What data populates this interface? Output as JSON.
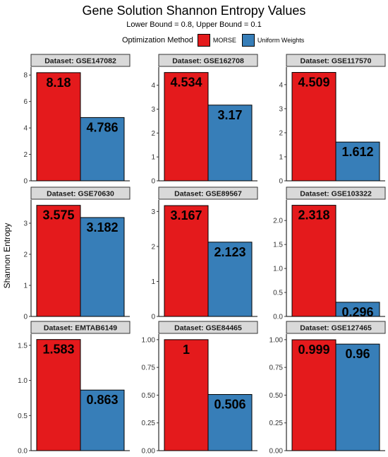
{
  "title": "Gene Solution Shannon Entropy Values",
  "subtitle": "Lower Bound = 0.8, Upper Bound = 0.1",
  "legend": {
    "title": "Optimization Method",
    "items": [
      {
        "label": "MORSE",
        "color": "#E41A1C"
      },
      {
        "label": "Uniform Weights",
        "color": "#377EB8"
      }
    ]
  },
  "ylabel": "Shannon Entropy",
  "chart_data": {
    "type": "bar",
    "title": "Gene Solution Shannon Entropy Values",
    "subtitle": "Lower Bound = 0.8, Upper Bound = 0.1",
    "ylabel": "Shannon Entropy",
    "legend_title": "Optimization Method",
    "legend_position": "top",
    "grid": false,
    "categories": [
      "MORSE",
      "Uniform Weights"
    ],
    "colors": [
      "#E41A1C",
      "#377EB8"
    ],
    "panels": [
      {
        "dataset": "Dataset: GSE147082",
        "values": [
          8.18,
          4.786
        ],
        "labels": [
          "8.18",
          "4.786"
        ],
        "ylim": [
          0,
          8.6
        ],
        "ticks": [
          0,
          2,
          4,
          6,
          8
        ],
        "tick_labels": [
          "0",
          "2",
          "4",
          "6",
          "8"
        ]
      },
      {
        "dataset": "Dataset: GSE162708",
        "values": [
          4.534,
          3.17
        ],
        "labels": [
          "4.534",
          "3.17"
        ],
        "ylim": [
          0,
          4.76
        ],
        "ticks": [
          0,
          1,
          2,
          3,
          4
        ],
        "tick_labels": [
          "0",
          "1",
          "2",
          "3",
          "4"
        ]
      },
      {
        "dataset": "Dataset: GSE117570",
        "values": [
          4.509,
          1.612
        ],
        "labels": [
          "4.509",
          "1.612"
        ],
        "ylim": [
          0,
          4.73
        ],
        "ticks": [
          0,
          1,
          2,
          3,
          4
        ],
        "tick_labels": [
          "0",
          "1",
          "2",
          "3",
          "4"
        ]
      },
      {
        "dataset": "Dataset: GSE70630",
        "values": [
          3.575,
          3.182
        ],
        "labels": [
          "3.575",
          "3.182"
        ],
        "ylim": [
          0,
          3.75
        ],
        "ticks": [
          0,
          1,
          2,
          3
        ],
        "tick_labels": [
          "0",
          "1",
          "2",
          "3"
        ]
      },
      {
        "dataset": "Dataset: GSE89567",
        "values": [
          3.167,
          2.123
        ],
        "labels": [
          "3.167",
          "2.123"
        ],
        "ylim": [
          0,
          3.33
        ],
        "ticks": [
          0,
          1,
          2,
          3
        ],
        "tick_labels": [
          "0",
          "1",
          "2",
          "3"
        ]
      },
      {
        "dataset": "Dataset: GSE103322",
        "values": [
          2.318,
          0.296
        ],
        "labels": [
          "2.318",
          "0.296"
        ],
        "ylim": [
          0,
          2.43
        ],
        "ticks": [
          0,
          0.5,
          1.0,
          1.5,
          2.0
        ],
        "tick_labels": [
          "0.0",
          "0.5",
          "1.0",
          "1.5",
          "2.0"
        ]
      },
      {
        "dataset": "Dataset: EMTAB6149",
        "values": [
          1.583,
          0.863
        ],
        "labels": [
          "1.583",
          "0.863"
        ],
        "ylim": [
          0,
          1.66
        ],
        "ticks": [
          0,
          0.5,
          1.0,
          1.5
        ],
        "tick_labels": [
          "0.0",
          "0.5",
          "1.0",
          "1.5"
        ]
      },
      {
        "dataset": "Dataset: GSE84465",
        "values": [
          1,
          0.506
        ],
        "labels": [
          "1",
          "0.506"
        ],
        "ylim": [
          0,
          1.05
        ],
        "ticks": [
          0,
          0.25,
          0.5,
          0.75,
          1.0
        ],
        "tick_labels": [
          "0.00",
          "0.25",
          "0.50",
          "0.75",
          "1.00"
        ]
      },
      {
        "dataset": "Dataset: GSE127465",
        "values": [
          0.999,
          0.96
        ],
        "labels": [
          "0.999",
          "0.96"
        ],
        "ylim": [
          0,
          1.05
        ],
        "ticks": [
          0,
          0.25,
          0.5,
          0.75,
          1.0
        ],
        "tick_labels": [
          "0.00",
          "0.25",
          "0.50",
          "0.75",
          "1.00"
        ]
      }
    ]
  }
}
